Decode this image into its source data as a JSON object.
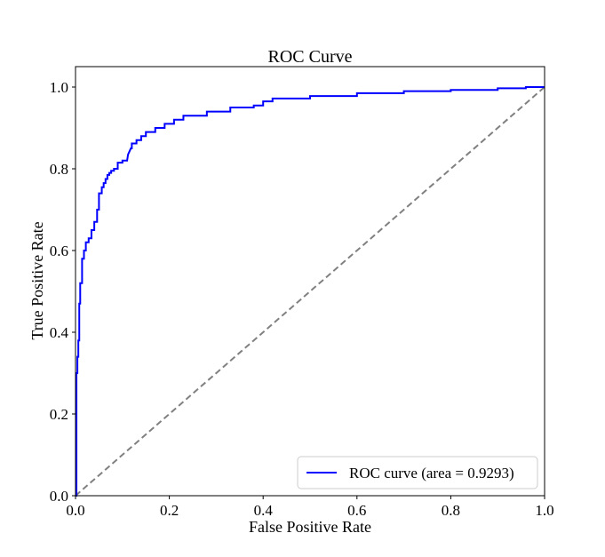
{
  "chart_data": {
    "type": "line",
    "title": "ROC Curve",
    "xlabel": "False Positive Rate",
    "ylabel": "True Positive Rate",
    "xlim": [
      0.0,
      1.0
    ],
    "ylim": [
      0.0,
      1.05
    ],
    "xticks": [
      "0.0",
      "0.2",
      "0.4",
      "0.6",
      "0.8",
      "1.0"
    ],
    "yticks": [
      "0.0",
      "0.2",
      "0.4",
      "0.6",
      "0.8",
      "1.0"
    ],
    "grid": false,
    "legend_position": "lower-right",
    "series": [
      {
        "name": "ROC curve (area = 0.9293)",
        "color": "#0000ff",
        "style": "solid",
        "x": [
          0.0,
          0.002,
          0.002,
          0.004,
          0.004,
          0.006,
          0.006,
          0.008,
          0.008,
          0.01,
          0.01,
          0.014,
          0.014,
          0.018,
          0.018,
          0.022,
          0.022,
          0.028,
          0.028,
          0.034,
          0.034,
          0.04,
          0.04,
          0.046,
          0.046,
          0.05,
          0.05,
          0.056,
          0.056,
          0.06,
          0.06,
          0.064,
          0.064,
          0.068,
          0.068,
          0.072,
          0.072,
          0.076,
          0.076,
          0.082,
          0.082,
          0.09,
          0.09,
          0.1,
          0.1,
          0.11,
          0.112,
          0.116,
          0.118,
          0.12,
          0.12,
          0.13,
          0.13,
          0.14,
          0.14,
          0.15,
          0.15,
          0.17,
          0.17,
          0.19,
          0.19,
          0.21,
          0.21,
          0.23,
          0.23,
          0.28,
          0.28,
          0.33,
          0.33,
          0.38,
          0.38,
          0.4,
          0.4,
          0.42,
          0.42,
          0.5,
          0.5,
          0.6,
          0.6,
          0.7,
          0.7,
          0.8,
          0.8,
          0.9,
          0.9,
          0.96,
          0.96,
          1.0
        ],
        "y": [
          0.0,
          0.0,
          0.3,
          0.3,
          0.34,
          0.34,
          0.38,
          0.38,
          0.47,
          0.47,
          0.52,
          0.52,
          0.58,
          0.58,
          0.6,
          0.6,
          0.62,
          0.62,
          0.63,
          0.63,
          0.65,
          0.65,
          0.67,
          0.67,
          0.7,
          0.7,
          0.74,
          0.74,
          0.755,
          0.755,
          0.765,
          0.765,
          0.775,
          0.775,
          0.785,
          0.785,
          0.79,
          0.79,
          0.795,
          0.795,
          0.8,
          0.8,
          0.815,
          0.815,
          0.82,
          0.82,
          0.835,
          0.845,
          0.85,
          0.85,
          0.862,
          0.862,
          0.87,
          0.87,
          0.88,
          0.88,
          0.89,
          0.89,
          0.9,
          0.9,
          0.91,
          0.91,
          0.92,
          0.92,
          0.93,
          0.93,
          0.94,
          0.94,
          0.95,
          0.95,
          0.955,
          0.955,
          0.965,
          0.965,
          0.972,
          0.972,
          0.978,
          0.978,
          0.985,
          0.985,
          0.99,
          0.99,
          0.993,
          0.993,
          0.997,
          0.997,
          1.0,
          1.0
        ]
      },
      {
        "name": "",
        "color": "#808080",
        "style": "dashed",
        "x": [
          0.0,
          1.0
        ],
        "y": [
          0.0,
          1.0
        ]
      }
    ],
    "legend": [
      {
        "label": "ROC curve (area = 0.9293)",
        "color": "#0000ff"
      }
    ]
  }
}
